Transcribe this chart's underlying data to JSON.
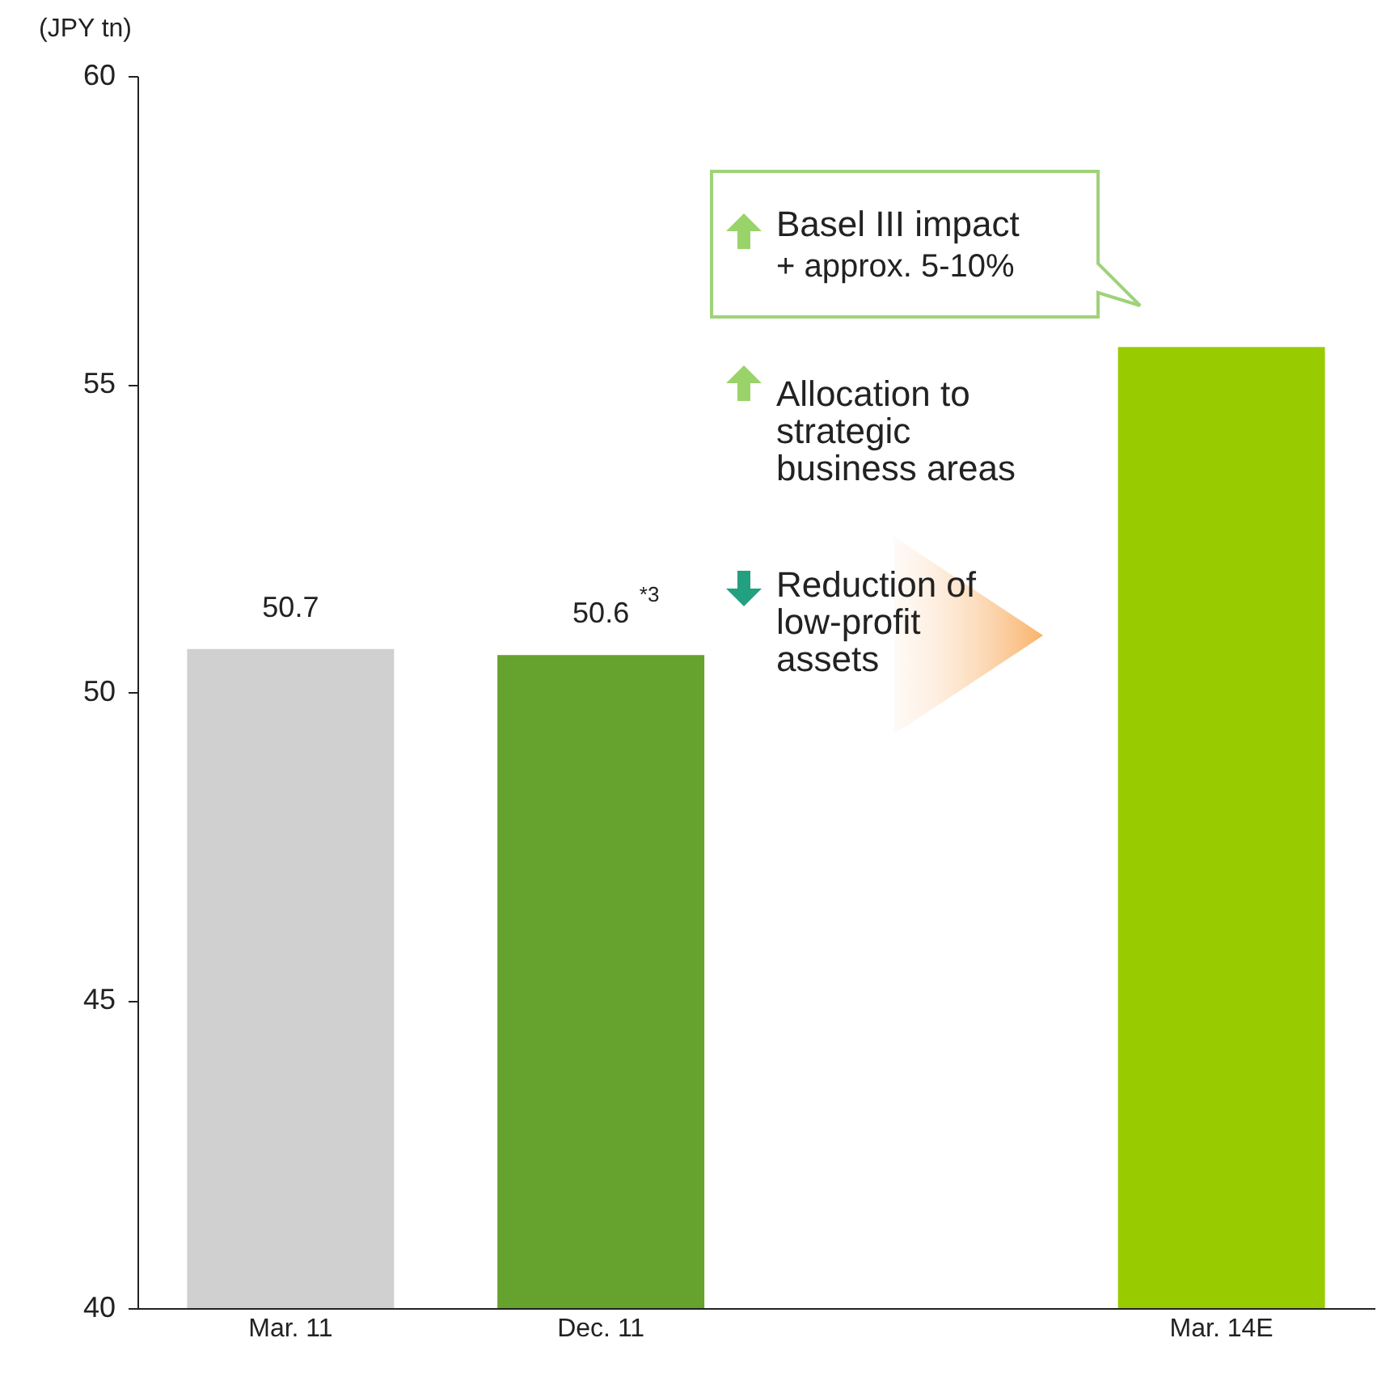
{
  "chart_data": {
    "type": "bar",
    "ylabel": "(JPY tn)",
    "categories": [
      "Mar. 11",
      "Dec. 11",
      null,
      "Mar. 14E"
    ],
    "values": [
      50.7,
      50.6,
      null,
      55.6
    ],
    "colors": [
      "#d0d0d0",
      "#66a22e",
      null,
      "#99cc00"
    ],
    "value_labels": [
      "50.7",
      "50.6$^{*3}$",
      null,
      null
    ],
    "ylim": [
      40,
      60
    ],
    "yticks": [
      40,
      45,
      50,
      55,
      60
    ],
    "grid": false,
    "annotations": [
      "Basel III impact",
      "+ approx. 5-10%",
      "Allocation to strategic business areas",
      "Reduction of low-profit assets"
    ]
  }
}
